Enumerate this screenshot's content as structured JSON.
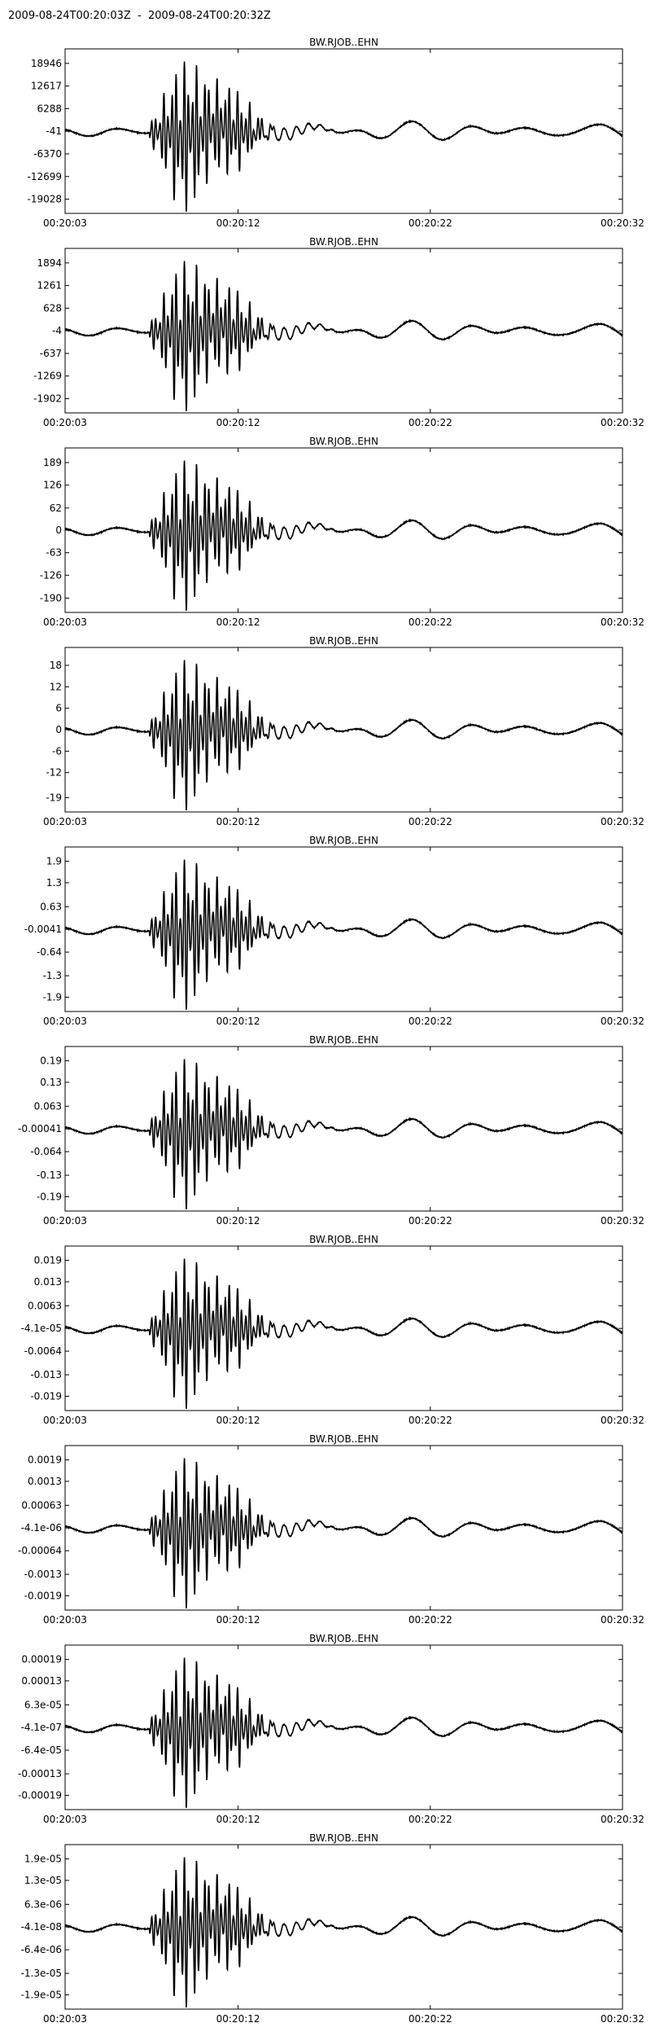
{
  "page_title": "2009-08-24T00:20:03Z  -  2009-08-24T00:20:32Z",
  "colors": {
    "trace": "#000000",
    "frame": "#000000",
    "background": "#ffffff"
  },
  "chart_data": [
    {
      "type": "line",
      "title": "BW.RJOB..EHN",
      "x_ticks": [
        "00:20:03",
        "00:20:12",
        "00:20:22",
        "00:20:32"
      ],
      "y_ticks": [
        "18946",
        "12617",
        "6288",
        "-41",
        "-6370",
        "-12699",
        "-19028"
      ],
      "ylim": [
        -23000,
        23000
      ]
    },
    {
      "type": "line",
      "title": "BW.RJOB..EHN",
      "x_ticks": [
        "00:20:03",
        "00:20:12",
        "00:20:22",
        "00:20:32"
      ],
      "y_ticks": [
        "1894",
        "1261",
        "628",
        "-4",
        "-637",
        "-1269",
        "-1902"
      ],
      "ylim": [
        -2300,
        2300
      ]
    },
    {
      "type": "line",
      "title": "BW.RJOB..EHN",
      "x_ticks": [
        "00:20:03",
        "00:20:12",
        "00:20:22",
        "00:20:32"
      ],
      "y_ticks": [
        "189",
        "126",
        "62",
        "0",
        "-63",
        "-126",
        "-190"
      ],
      "ylim": [
        -230,
        230
      ]
    },
    {
      "type": "line",
      "title": "BW.RJOB..EHN",
      "x_ticks": [
        "00:20:03",
        "00:20:12",
        "00:20:22",
        "00:20:32"
      ],
      "y_ticks": [
        "18",
        "12",
        "6",
        "0",
        "-6",
        "-12",
        "-19"
      ],
      "ylim": [
        -23,
        23
      ]
    },
    {
      "type": "line",
      "title": "BW.RJOB..EHN",
      "x_ticks": [
        "00:20:03",
        "00:20:12",
        "00:20:22",
        "00:20:32"
      ],
      "y_ticks": [
        "1.9",
        "1.3",
        "0.63",
        "-0.0041",
        "-0.64",
        "-1.3",
        "-1.9"
      ],
      "ylim": [
        -2.3,
        2.3
      ]
    },
    {
      "type": "line",
      "title": "BW.RJOB..EHN",
      "x_ticks": [
        "00:20:03",
        "00:20:12",
        "00:20:22",
        "00:20:32"
      ],
      "y_ticks": [
        "0.19",
        "0.13",
        "0.063",
        "-0.00041",
        "-0.064",
        "-0.13",
        "-0.19"
      ],
      "ylim": [
        -0.23,
        0.23
      ]
    },
    {
      "type": "line",
      "title": "BW.RJOB..EHN",
      "x_ticks": [
        "00:20:03",
        "00:20:12",
        "00:20:22",
        "00:20:32"
      ],
      "y_ticks": [
        "0.019",
        "0.013",
        "0.0063",
        "-4.1e-05",
        "-0.0064",
        "-0.013",
        "-0.019"
      ],
      "ylim": [
        -0.023,
        0.023
      ]
    },
    {
      "type": "line",
      "title": "BW.RJOB..EHN",
      "x_ticks": [
        "00:20:03",
        "00:20:12",
        "00:20:22",
        "00:20:32"
      ],
      "y_ticks": [
        "0.0019",
        "0.0013",
        "0.00063",
        "-4.1e-06",
        "-0.00064",
        "-0.0013",
        "-0.0019"
      ],
      "ylim": [
        -0.0023,
        0.0023
      ]
    },
    {
      "type": "line",
      "title": "BW.RJOB..EHN",
      "x_ticks": [
        "00:20:03",
        "00:20:12",
        "00:20:22",
        "00:20:32"
      ],
      "y_ticks": [
        "0.00019",
        "0.00013",
        "6.3e-05",
        "-4.1e-07",
        "-6.4e-05",
        "-0.00013",
        "-0.00019"
      ],
      "ylim": [
        -0.00023,
        0.00023
      ]
    },
    {
      "type": "line",
      "title": "BW.RJOB..EHN",
      "x_ticks": [
        "00:20:03",
        "00:20:12",
        "00:20:22",
        "00:20:32"
      ],
      "y_ticks": [
        "1.9e-05",
        "1.3e-05",
        "6.3e-06",
        "-4.1e-08",
        "-6.4e-06",
        "-1.3e-05",
        "-1.9e-05"
      ],
      "ylim": [
        -2.3e-05,
        2.3e-05
      ]
    }
  ]
}
